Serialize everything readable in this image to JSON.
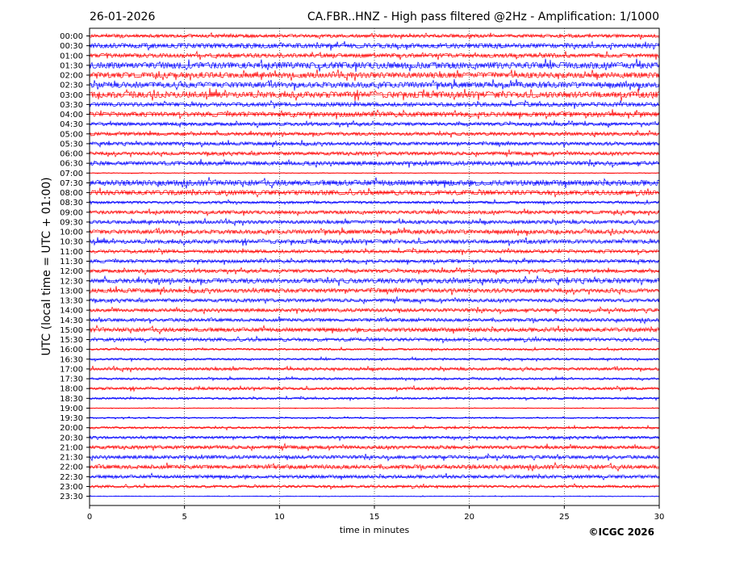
{
  "header": {
    "date": "26-01-2026",
    "title": "CA.FBR..HNZ - High pass filtered @2Hz - Amplification: 1/1000"
  },
  "copyright": "©ICGC 2026",
  "chart_data": {
    "type": "line",
    "title": "CA.FBR..HNZ - High pass filtered @2Hz - Amplification: 1/1000",
    "xlabel": "time in minutes",
    "ylabel": "UTC (local time = UTC + 01:00)",
    "xlim": [
      0,
      30
    ],
    "x_ticks": [
      "0",
      "5",
      "10",
      "15",
      "20",
      "25",
      "30"
    ],
    "grid": "vertical dotted at each 5 minutes",
    "series_colors": [
      "#ff0000",
      "#0000ff"
    ],
    "row_labels": [
      "00:00",
      "00:30",
      "01:00",
      "01:30",
      "02:00",
      "02:30",
      "03:00",
      "03:30",
      "04:00",
      "04:30",
      "05:00",
      "05:30",
      "06:00",
      "06:30",
      "07:00",
      "07:30",
      "08:00",
      "08:30",
      "09:00",
      "09:30",
      "10:00",
      "10:30",
      "11:00",
      "11:30",
      "12:00",
      "12:30",
      "13:00",
      "13:30",
      "14:00",
      "14:30",
      "15:00",
      "15:30",
      "16:00",
      "16:30",
      "17:00",
      "17:30",
      "18:00",
      "18:30",
      "19:00",
      "19:30",
      "20:00",
      "20:30",
      "21:00",
      "21:30",
      "22:00",
      "22:30",
      "23:00",
      "23:30"
    ],
    "amplitude": [
      0.5,
      0.7,
      0.6,
      0.9,
      0.8,
      0.8,
      0.9,
      0.6,
      0.7,
      0.5,
      0.5,
      0.5,
      0.5,
      0.6,
      0.1,
      0.8,
      0.7,
      0.4,
      0.5,
      0.5,
      0.6,
      0.6,
      0.5,
      0.5,
      0.5,
      0.7,
      0.6,
      0.5,
      0.5,
      0.5,
      0.6,
      0.5,
      0.3,
      0.3,
      0.4,
      0.3,
      0.4,
      0.3,
      0.1,
      0.2,
      0.3,
      0.4,
      0.5,
      0.5,
      0.6,
      0.5,
      0.4,
      0.1
    ]
  }
}
